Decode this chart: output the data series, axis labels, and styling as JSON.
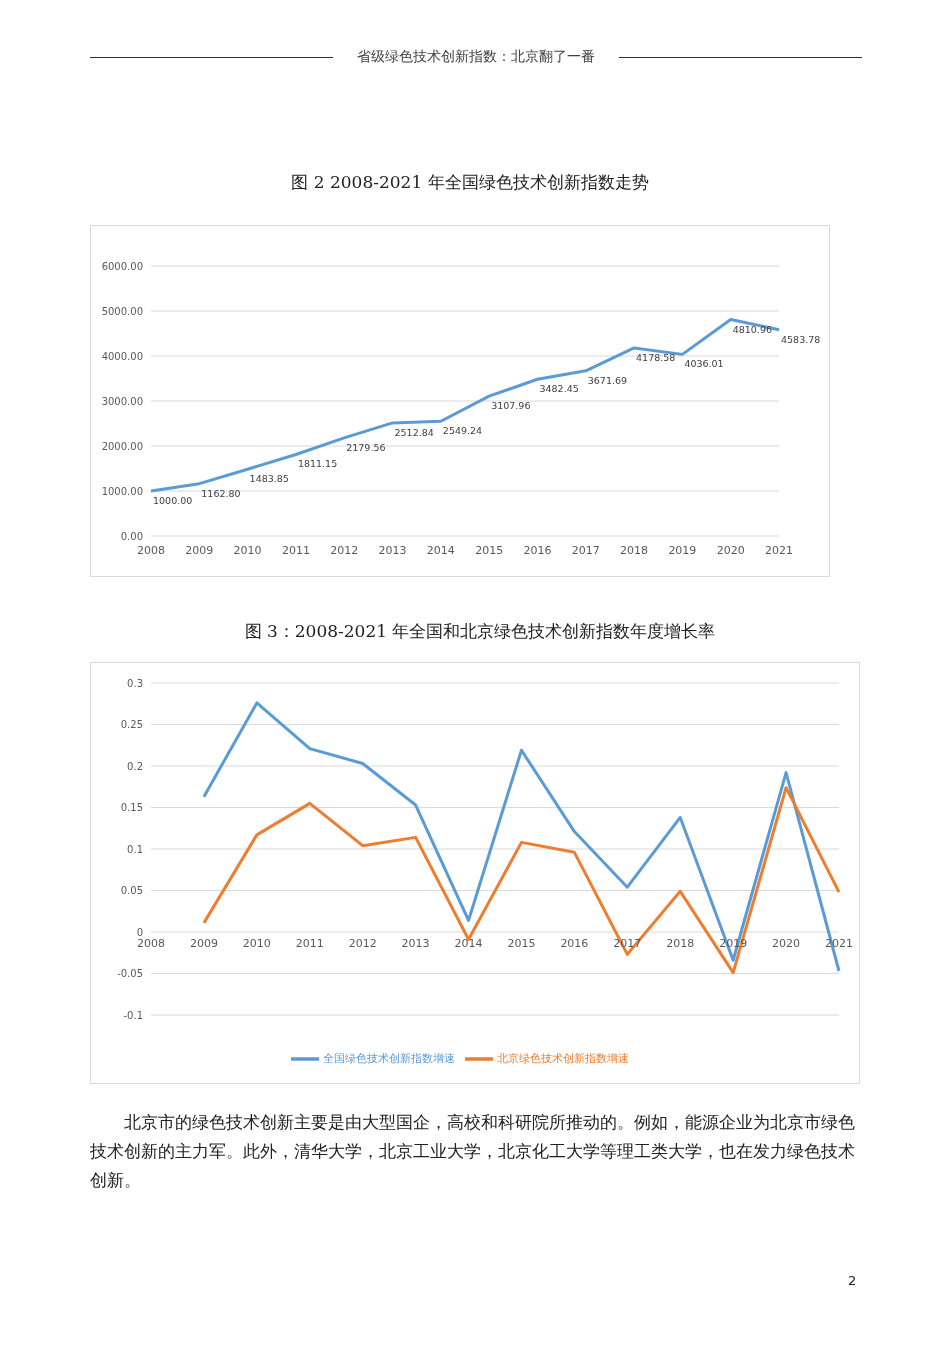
{
  "chart_data": [
    {
      "type": "line",
      "title": "图 2 2008-2021 年全国绿色技术创新指数走势",
      "annotations": [
        "省级绿色技术创新指数：北京翻了一番"
      ],
      "categories": [
        "2008",
        "2009",
        "2010",
        "2011",
        "2012",
        "2013",
        "2014",
        "2015",
        "2016",
        "2017",
        "2018",
        "2019",
        "2020",
        "2021"
      ],
      "series": [
        {
          "color": "#5b9bd5",
          "values": [
            1000.0,
            1162.8,
            1483.85,
            1811.15,
            2179.56,
            2512.84,
            2549.24,
            3107.96,
            3482.45,
            3671.69,
            4178.58,
            4036.01,
            4810.96,
            4583.78
          ],
          "value_labels": [
            "1000.00",
            "1162.80",
            "1483.85",
            "1811.15",
            "2179.56",
            "2512.84",
            "2549.24",
            "3107.96",
            "3482.45",
            "3671.69",
            "4178.58",
            "4036.01",
            "4810.96",
            "4583.78"
          ]
        }
      ],
      "ylim": [
        0,
        6000
      ],
      "yticks": [
        {
          "value": 0,
          "label": "0.00"
        },
        {
          "value": 1000,
          "label": "1000.00"
        },
        {
          "value": 2000,
          "label": "2000.00"
        },
        {
          "value": 3000,
          "label": "3000.00"
        },
        {
          "value": 4000,
          "label": "4000.00"
        },
        {
          "value": 5000,
          "label": "5000.00"
        },
        {
          "value": 6000,
          "label": "6000.00"
        }
      ],
      "grid": "y",
      "legend": false,
      "marker": "none",
      "line_style": "solid"
    },
    {
      "type": "line",
      "title": "图 3：2008-2021 年全国和北京绿色技术创新指数年度增长率",
      "annotations": [
        "北京市的绿色技术创新主要是由大型国企，高校和科研院所推动的。例如，能源企业为北京市绿色技术创新的主力军。此外，清华大学，北京工业大学，北京化工大学等理工类大学，也在发力绿色技术创新。",
        "2"
      ],
      "categories": [
        "2008",
        "2009",
        "2010",
        "2011",
        "2012",
        "2013",
        "2014",
        "2015",
        "2016",
        "2017",
        "2018",
        "2019",
        "2020",
        "2021"
      ],
      "series": [
        {
          "name": "全国绿色技术创新指数增速",
          "color": "#5b9bd5",
          "values": [
            null,
            0.163,
            0.276,
            0.221,
            0.203,
            0.153,
            0.014,
            0.219,
            0.121,
            0.054,
            0.138,
            -0.034,
            0.192,
            -0.047
          ]
        },
        {
          "name": "北京绿色技术创新指数增速",
          "color": "#ed7d31",
          "values": [
            null,
            0.011,
            0.117,
            0.155,
            0.104,
            0.114,
            -0.009,
            0.108,
            0.096,
            -0.027,
            0.049,
            -0.049,
            0.174,
            0.048
          ]
        }
      ],
      "ylim": [
        -0.1,
        0.3
      ],
      "yticks": [
        -0.1,
        -0.05,
        0,
        0.05,
        0.1,
        0.15,
        0.2,
        0.25,
        0.3
      ],
      "grid": "y",
      "legend": "bottom",
      "marker": "none",
      "line_style": "solid"
    }
  ]
}
